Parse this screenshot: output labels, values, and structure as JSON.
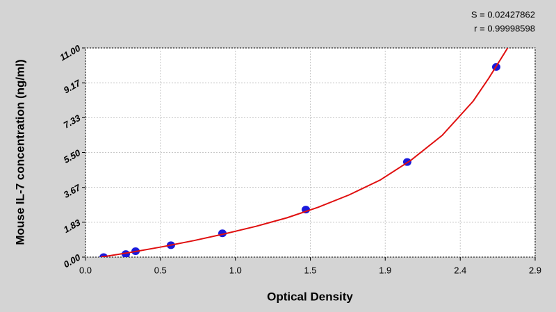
{
  "chart_data": {
    "type": "scatter",
    "annotations": [
      "S = 0.02427862",
      "r = 0.99998598"
    ],
    "x_label": "Optical Density",
    "y_label": "Mouse IL-7 concentration (ng/ml)",
    "xlim": [
      0,
      2.9
    ],
    "ylim": [
      0,
      11
    ],
    "xticks": [
      {
        "value": 0,
        "label": "0.0"
      },
      {
        "value": 0.483,
        "label": "0.5"
      },
      {
        "value": 0.967,
        "label": "1.0"
      },
      {
        "value": 1.45,
        "label": "1.5"
      },
      {
        "value": 1.933,
        "label": "1.9"
      },
      {
        "value": 2.417,
        "label": "2.4"
      },
      2.9
    ],
    "yticks": [
      {
        "value": 0,
        "label": "0.00"
      },
      {
        "value": 1.833,
        "label": "1.83"
      },
      {
        "value": 3.667,
        "label": "3.67"
      },
      {
        "value": 5.5,
        "label": "5.50"
      },
      {
        "value": 7.333,
        "label": "7.33"
      },
      {
        "value": 9.167,
        "label": "9.17"
      },
      {
        "value": 11,
        "label": "11.00"
      }
    ],
    "grid": true,
    "series": [
      {
        "type": "scatter",
        "color": "#1a1adc",
        "x": [
          0.117,
          0.26,
          0.323,
          0.551,
          0.883,
          1.421,
          2.075,
          2.649
        ],
        "values": [
          0,
          0.16,
          0.31,
          0.625,
          1.25,
          2.5,
          5,
          10
        ]
      },
      {
        "type": "line",
        "color": "#e01010",
        "x": [
          0.1,
          0.3,
          0.5,
          0.7,
          0.9,
          1.1,
          1.3,
          1.5,
          1.7,
          1.9,
          2.1,
          2.3,
          2.5,
          2.6,
          2.7,
          2.73
        ],
        "values": [
          0,
          0.26,
          0.55,
          0.87,
          1.23,
          1.62,
          2.07,
          2.62,
          3.27,
          4.05,
          5.1,
          6.4,
          8.2,
          9.4,
          10.7,
          11.1
        ]
      }
    ]
  }
}
